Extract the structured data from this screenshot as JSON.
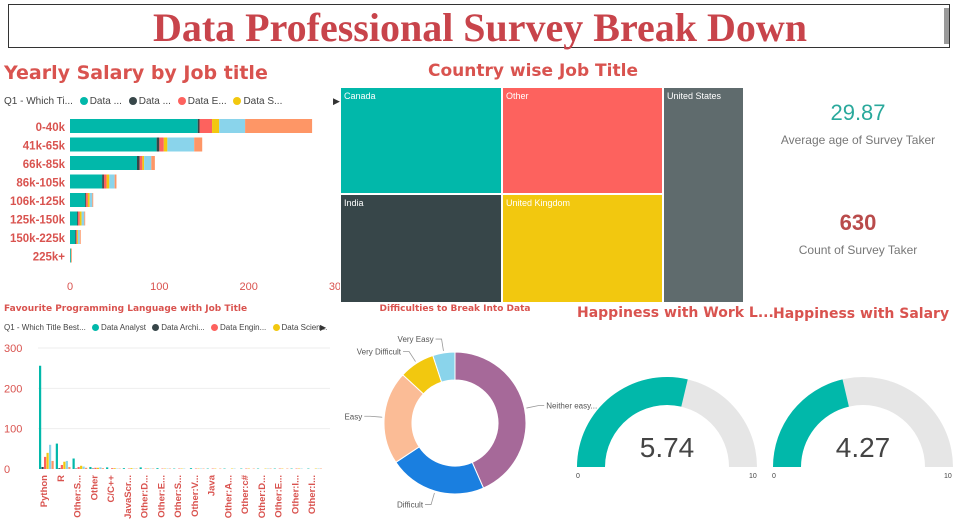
{
  "header": {
    "title": "Data Professional Survey Break Down"
  },
  "colors": {
    "teal": "#01b8aa",
    "dark": "#374649",
    "red": "#fd625e",
    "yellow": "#f2c80f",
    "grey": "#5f6b6d",
    "lightblue": "#8ad4eb",
    "orange": "#fe9666",
    "purple": "#a66999",
    "blue": "#1a7fe0",
    "peach": "#fbbc96",
    "title_red": "#c8444b"
  },
  "salary_chart": {
    "title": "Yearly Salary by Job title",
    "legend_field": "Q1 - Which Ti...",
    "legend": [
      {
        "label": "Data ...",
        "color": "#01b8aa"
      },
      {
        "label": "Data ...",
        "color": "#374649"
      },
      {
        "label": "Data E...",
        "color": "#fd625e"
      },
      {
        "label": "Data S...",
        "color": "#f2c80f"
      }
    ]
  },
  "treemap": {
    "title": "Country wise Job Title",
    "cells": [
      {
        "label": "Canada",
        "color": "#01b8aa"
      },
      {
        "label": "Other",
        "color": "#fd625e"
      },
      {
        "label": "United States",
        "color": "#5f6b6d"
      },
      {
        "label": "India",
        "color": "#374649"
      },
      {
        "label": "United Kingdom",
        "color": "#f2c80f"
      }
    ]
  },
  "cards": {
    "avg_age": {
      "value": "29.87",
      "label": "Average age of Survey Taker",
      "color": "#2aa99c"
    },
    "count": {
      "value": "630",
      "label": "Count of Survey Taker",
      "color": "#b94b4b"
    }
  },
  "lang_chart": {
    "title": "Favourite Programming Language with Job Title",
    "legend_field": "Q1 - Which Title Best...",
    "legend": [
      {
        "label": "Data Analyst",
        "color": "#01b8aa"
      },
      {
        "label": "Data Archi...",
        "color": "#374649"
      },
      {
        "label": "Data Engin...",
        "color": "#fd625e"
      },
      {
        "label": "Data Scien...",
        "color": "#f2c80f"
      }
    ]
  },
  "donut": {
    "title": "Difficulties to Break Into Data"
  },
  "gauges": [
    {
      "title": "Happiness with Work L...",
      "min_label": "0",
      "max_label": "10"
    },
    {
      "title": "Happiness with Salary",
      "min_label": "0",
      "max_label": "10"
    }
  ],
  "chart_data": [
    {
      "type": "bar",
      "orientation": "horizontal",
      "stacked": true,
      "categories": [
        "0-40k",
        "41k-65k",
        "66k-85k",
        "86k-105k",
        "106k-125k",
        "125k-150k",
        "150k-225k",
        "225k+"
      ],
      "series": [
        {
          "name": "Data ...",
          "color": "#01b8aa",
          "values": [
            143,
            97,
            75,
            36,
            17,
            8,
            6,
            1
          ]
        },
        {
          "name": "Data ...",
          "color": "#374649",
          "values": [
            2,
            3,
            3,
            2,
            1,
            1,
            1,
            0
          ]
        },
        {
          "name": "Data E...",
          "color": "#fd625e",
          "values": [
            14,
            5,
            3,
            3,
            2,
            2,
            1,
            0
          ]
        },
        {
          "name": "Data S...",
          "color": "#f2c80f",
          "values": [
            8,
            4,
            2,
            3,
            2,
            2,
            1,
            0
          ]
        },
        {
          "color": "#8ad4eb",
          "values": [
            29,
            30,
            8,
            6,
            3,
            3,
            2,
            0
          ]
        },
        {
          "color": "#fe9666",
          "values": [
            75,
            9,
            4,
            2,
            1,
            1,
            1,
            1
          ]
        }
      ],
      "xticks": [
        "0",
        "100",
        "200",
        "300"
      ],
      "xlim": [
        0,
        300
      ]
    },
    {
      "type": "treemap",
      "categories": [
        "Canada",
        "Other",
        "United States",
        "India",
        "United Kingdom"
      ]
    },
    {
      "type": "bar",
      "orientation": "vertical",
      "grouped": true,
      "categories": [
        "Python",
        "R",
        "Other:S...",
        "Other",
        "C/C++",
        "JavaScr...",
        "Other:D...",
        "Other:E...",
        "Other:S...",
        "Other:V...",
        "Java",
        "Other:A...",
        "Other:c#",
        "Other:D...",
        "Other:E...",
        "Other:I...",
        "Other:I..."
      ],
      "yticks": [
        "0",
        "100",
        "200",
        "300"
      ],
      "ylim": [
        0,
        300
      ],
      "series": [
        {
          "name": "Data Analyst",
          "color": "#01b8aa",
          "values": [
            256,
            63,
            26,
            5,
            4,
            2,
            4,
            2,
            1,
            2,
            1,
            1,
            1,
            1,
            1,
            1,
            1
          ]
        },
        {
          "name": "Data Archi...",
          "color": "#374649",
          "values": [
            5,
            2,
            1,
            1,
            0,
            0,
            0,
            0,
            0,
            0,
            0,
            0,
            0,
            0,
            0,
            0,
            0
          ]
        },
        {
          "name": "Data Engin...",
          "color": "#fd625e",
          "values": [
            30,
            10,
            5,
            3,
            2,
            1,
            1,
            1,
            1,
            1,
            1,
            0,
            1,
            0,
            1,
            1,
            0
          ]
        },
        {
          "name": "Data Scien...",
          "color": "#f2c80f",
          "values": [
            40,
            18,
            8,
            3,
            2,
            2,
            1,
            1,
            1,
            1,
            1,
            1,
            1,
            1,
            1,
            1,
            1
          ]
        },
        {
          "color": "#8ad4eb",
          "values": [
            60,
            20,
            6,
            4,
            1,
            1,
            1,
            1,
            1,
            1,
            0,
            1,
            0,
            1,
            0,
            1,
            1
          ]
        },
        {
          "color": "#fe9666",
          "values": [
            20,
            5,
            3,
            2,
            1,
            1,
            1,
            1,
            0,
            1,
            1,
            0,
            1,
            1,
            1,
            0,
            1
          ]
        }
      ]
    },
    {
      "type": "pie",
      "donut": true,
      "title": "Difficulties to Break Into Data",
      "labels": [
        "Neither easy...",
        "Difficult",
        "Easy",
        "Very Difficult",
        "Very Easy"
      ],
      "values": [
        43,
        22,
        21,
        8,
        5
      ],
      "colors": [
        "#a66999",
        "#1a7fe0",
        "#fbbc96",
        "#f2c80f",
        "#8ad4eb"
      ]
    },
    {
      "type": "gauge",
      "title": "Happiness with Work L...",
      "value": 5.74,
      "value_label": "5.74",
      "range": [
        0,
        10
      ]
    },
    {
      "type": "gauge",
      "title": "Happiness with Salary",
      "value": 4.27,
      "value_label": "4.27",
      "range": [
        0,
        10
      ]
    }
  ]
}
